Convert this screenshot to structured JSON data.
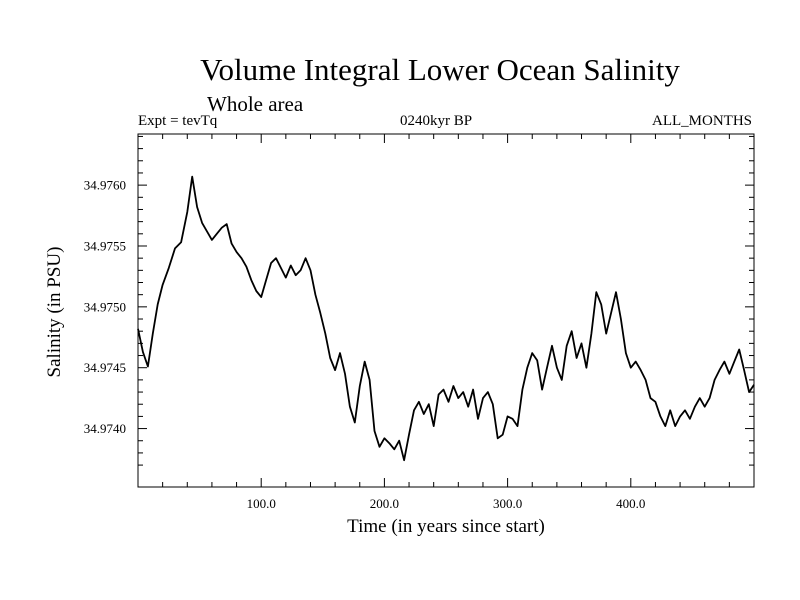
{
  "header": {
    "title": "Volume Integral Lower Ocean Salinity",
    "subtitle": "Whole area",
    "experiment": "Expt = tevTq",
    "period": "0240kyr BP",
    "months": "ALL_MONTHS"
  },
  "chart_data": {
    "type": "line",
    "title": "Volume Integral Lower Ocean Salinity",
    "subtitle": "Whole area",
    "xlabel": "Time (in years since start)",
    "ylabel": "Salinity (in PSU)",
    "xlim": [
      0,
      500
    ],
    "ylim": [
      34.97352,
      34.97642
    ],
    "x_ticks": [
      100,
      200,
      300,
      400
    ],
    "x_tick_labels": [
      "100.0",
      "200.0",
      "300.0",
      "400.0"
    ],
    "y_ticks": [
      34.974,
      34.9745,
      34.975,
      34.9755,
      34.976
    ],
    "y_tick_labels": [
      "34.9740",
      "34.9745",
      "34.9750",
      "34.9755",
      "34.9760"
    ],
    "grid": false,
    "series": [
      {
        "name": "Salinity",
        "x": [
          0,
          4,
          8,
          12,
          16,
          20,
          25,
          30,
          35,
          40,
          44,
          48,
          52,
          56,
          60,
          64,
          68,
          72,
          76,
          80,
          84,
          88,
          92,
          96,
          100,
          104,
          108,
          112,
          116,
          120,
          124,
          128,
          132,
          136,
          140,
          144,
          148,
          152,
          156,
          160,
          164,
          168,
          172,
          176,
          180,
          184,
          188,
          192,
          196,
          200,
          204,
          208,
          212,
          216,
          220,
          224,
          228,
          232,
          236,
          240,
          244,
          248,
          252,
          256,
          260,
          264,
          268,
          272,
          276,
          280,
          284,
          288,
          292,
          296,
          300,
          304,
          308,
          312,
          316,
          320,
          324,
          328,
          332,
          336,
          340,
          344,
          348,
          352,
          356,
          360,
          364,
          368,
          372,
          376,
          380,
          384,
          388,
          392,
          396,
          400,
          404,
          408,
          412,
          416,
          420,
          424,
          428,
          432,
          436,
          440,
          444,
          448,
          452,
          456,
          460,
          464,
          468,
          472,
          476,
          480,
          484,
          488,
          492,
          496,
          500
        ],
        "y": [
          34.97482,
          34.97463,
          34.97451,
          34.97478,
          34.97502,
          34.97518,
          34.97532,
          34.97548,
          34.97553,
          34.97578,
          34.97607,
          34.97582,
          34.97569,
          34.97562,
          34.97555,
          34.9756,
          34.97565,
          34.97568,
          34.97552,
          34.97545,
          34.9754,
          34.97533,
          34.97522,
          34.97513,
          34.97508,
          34.97522,
          34.97536,
          34.9754,
          34.97532,
          34.97524,
          34.97534,
          34.97526,
          34.9753,
          34.9754,
          34.9753,
          34.9751,
          34.97495,
          34.97478,
          34.97458,
          34.97448,
          34.97462,
          34.97445,
          34.97418,
          34.97405,
          34.97435,
          34.97455,
          34.9744,
          34.97398,
          34.97385,
          34.97392,
          34.97388,
          34.97383,
          34.9739,
          34.97374,
          34.97395,
          34.97415,
          34.97422,
          34.97412,
          34.9742,
          34.97402,
          34.97428,
          34.97432,
          34.97422,
          34.97435,
          34.97425,
          34.9743,
          34.97418,
          34.97432,
          34.97408,
          34.97425,
          34.9743,
          34.9742,
          34.97392,
          34.97395,
          34.9741,
          34.97408,
          34.97402,
          34.97432,
          34.9745,
          34.97462,
          34.97456,
          34.97432,
          34.9745,
          34.97468,
          34.9745,
          34.9744,
          34.97468,
          34.9748,
          34.97458,
          34.9747,
          34.9745,
          34.97478,
          34.97512,
          34.97502,
          34.97478,
          34.97495,
          34.97512,
          34.9749,
          34.97462,
          34.9745,
          34.97455,
          34.97448,
          34.9744,
          34.97425,
          34.97422,
          34.9741,
          34.97402,
          34.97415,
          34.97402,
          34.9741,
          34.97415,
          34.97408,
          34.97418,
          34.97425,
          34.97418,
          34.97425,
          34.9744,
          34.97448,
          34.97455,
          34.97445,
          34.97455,
          34.97465,
          34.97448,
          34.9743,
          34.97436
        ]
      }
    ]
  }
}
